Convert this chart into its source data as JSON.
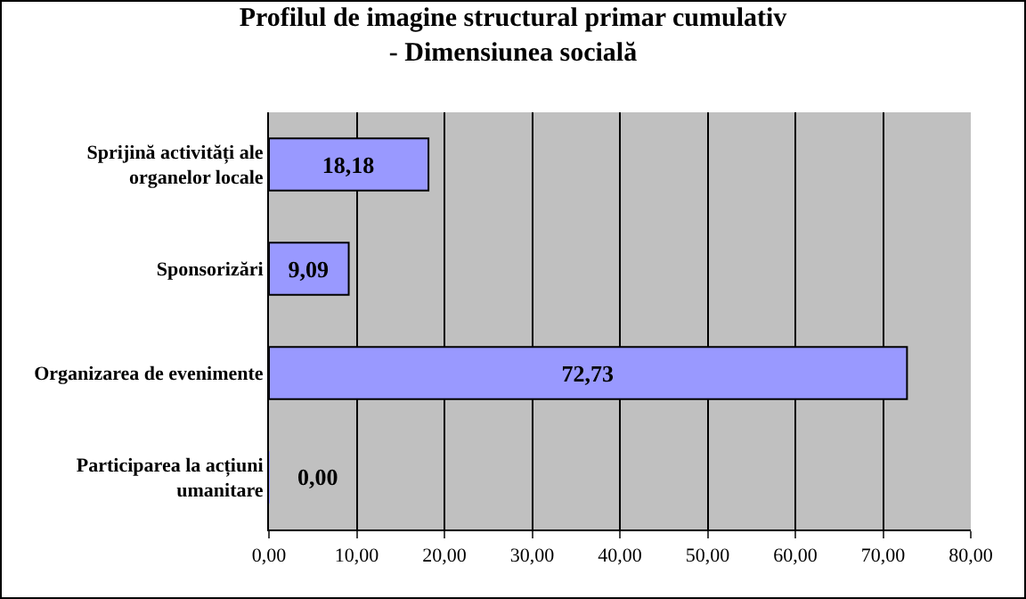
{
  "chart_data": {
    "type": "bar",
    "orientation": "horizontal",
    "title": "Profilul de imagine structural primar cumulativ",
    "subtitle": "- Dimensiunea socială",
    "categories": [
      "Sprijină activități ale organelor locale",
      "Sponsorizări",
      "Organizarea de evenimente",
      "Participarea la acțiuni umanitare"
    ],
    "values": [
      18.18,
      9.09,
      72.73,
      0
    ],
    "value_labels": [
      "18,18",
      "9,09",
      "72,73",
      "0,00"
    ],
    "color": "#9999ff",
    "xlim": [
      0,
      80
    ],
    "xticks": [
      {
        "value": 0,
        "label": "0,00"
      },
      {
        "value": 10,
        "label": "10,00"
      },
      {
        "value": 20,
        "label": "20,00"
      },
      {
        "value": 30,
        "label": "30,00"
      },
      {
        "value": 40,
        "label": "40,00"
      },
      {
        "value": 50,
        "label": "50,00"
      },
      {
        "value": 60,
        "label": "60,00"
      },
      {
        "value": 70,
        "label": "70,00"
      },
      {
        "value": 80,
        "label": "80,00"
      }
    ],
    "grid": "x"
  }
}
